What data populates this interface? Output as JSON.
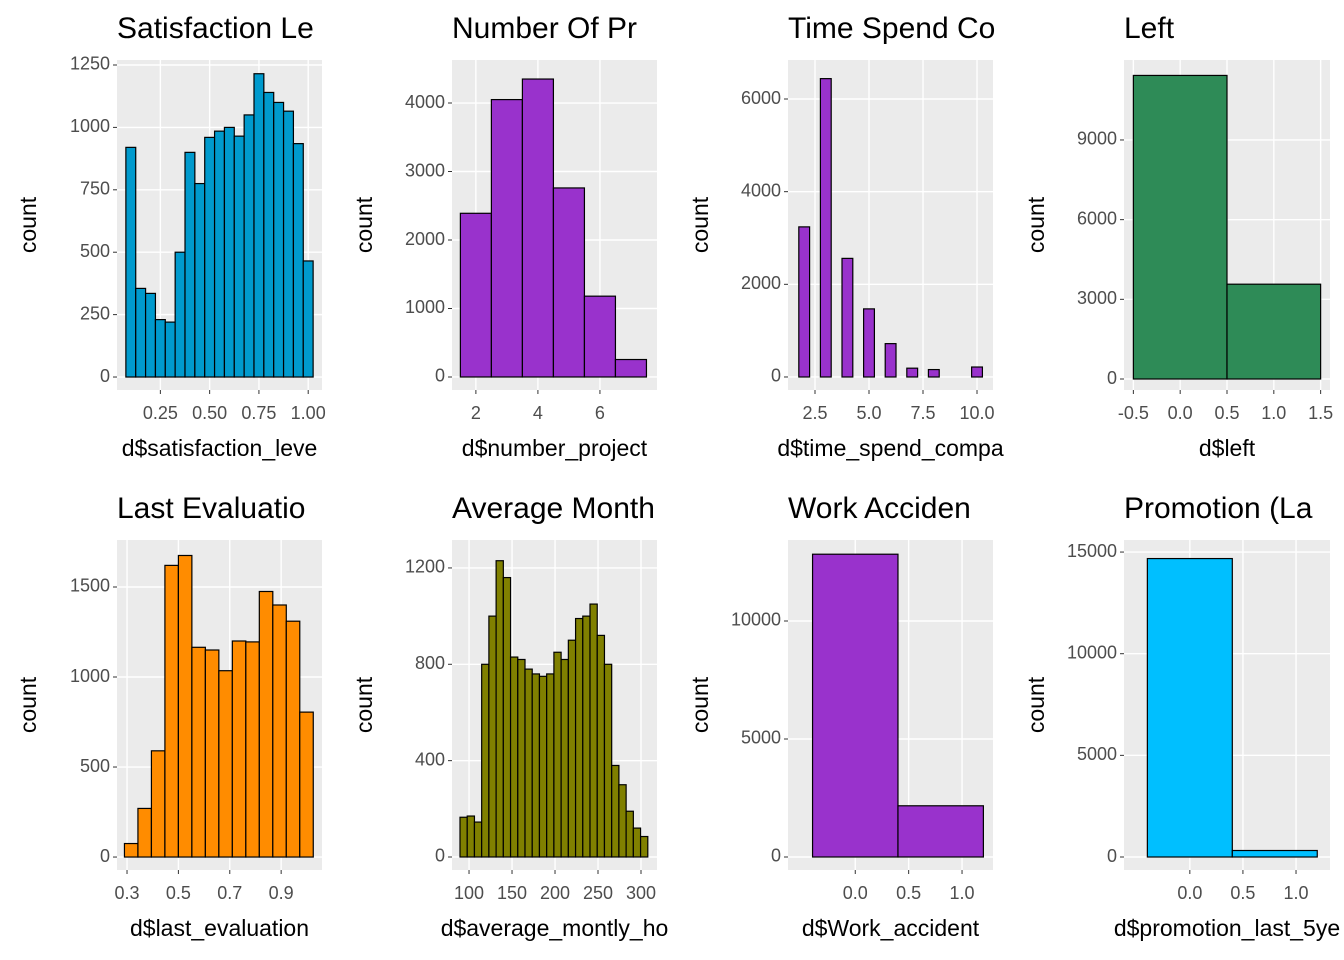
{
  "chart_data": [
    {
      "type": "histogram",
      "title": "Satisfaction Le",
      "x_label": "d$satisfaction_leve",
      "y_label": "count",
      "color": "#009ACD",
      "bins": [
        0.075,
        0.125,
        0.175,
        0.225,
        0.275,
        0.325,
        0.375,
        0.425,
        0.475,
        0.525,
        0.575,
        0.625,
        0.675,
        0.725,
        0.775,
        0.825,
        0.875,
        0.925,
        0.975,
        1.025
      ],
      "values": [
        920,
        355,
        335,
        230,
        220,
        500,
        900,
        775,
        960,
        985,
        1000,
        965,
        1050,
        1215,
        1140,
        1100,
        1065,
        935,
        465
      ],
      "xlim": [
        0.03,
        1.07
      ],
      "ylim": [
        -52,
        1270
      ],
      "xticks": [
        {
          "value": 0.25,
          "label": "0.25"
        },
        {
          "value": 0.5,
          "label": "0.50"
        },
        {
          "value": 0.75,
          "label": "0.75"
        },
        {
          "value": 1.0,
          "label": "1.00"
        }
      ],
      "yticks": [
        0,
        250,
        500,
        750,
        1000,
        1250
      ],
      "grid": true
    },
    {
      "type": "histogram",
      "title": "Number Of Pr",
      "x_label": "d$number_project",
      "y_label": "count",
      "color": "#9932CC",
      "bins": [
        1.5,
        2.5,
        3.5,
        4.5,
        5.5,
        6.5,
        7.5
      ],
      "values": [
        2390,
        4050,
        4350,
        2760,
        1180,
        255
      ],
      "xlim": [
        1.23,
        7.84
      ],
      "ylim": [
        -190,
        4628
      ],
      "xticks": [
        2,
        4,
        6
      ],
      "yticks": [
        0,
        1000,
        2000,
        3000,
        4000
      ],
      "grid": true
    },
    {
      "type": "histogram",
      "title": "Time Spend Co",
      "x_label": "d$time_spend_compa",
      "y_label": "count",
      "color": "#9932CC",
      "bins": [
        1.75,
        2.25,
        2.75,
        3.25,
        3.75,
        4.25,
        4.75,
        5.25,
        5.75,
        6.25,
        6.75,
        7.25,
        7.75,
        8.25,
        8.75,
        9.25,
        9.75,
        10.25
      ],
      "values": [
        3240,
        0,
        6440,
        0,
        2560,
        0,
        1470,
        0,
        720,
        0,
        190,
        0,
        160,
        0,
        0,
        0,
        215
      ],
      "xlim": [
        1.25,
        10.74
      ],
      "ylim": [
        -281,
        6842
      ],
      "xticks": [
        {
          "value": 2.5,
          "label": "2.5"
        },
        {
          "value": 5,
          "label": "5.0"
        },
        {
          "value": 7.5,
          "label": "7.5"
        },
        {
          "value": 10,
          "label": "10.0"
        }
      ],
      "yticks": [
        0,
        2000,
        4000,
        6000
      ],
      "grid": true
    },
    {
      "type": "histogram",
      "title": "Left",
      "x_label": "d$left",
      "y_label": "count",
      "color": "#2E8B57",
      "bins": [
        -0.5,
        0.5,
        1.5
      ],
      "values": [
        11430,
        3570
      ],
      "xlim": [
        -0.6,
        1.6
      ],
      "ylim": [
        -414,
        12011
      ],
      "xticks": [
        {
          "value": -0.5,
          "label": "-0.5"
        },
        {
          "value": 0,
          "label": "0.0"
        },
        {
          "value": 0.5,
          "label": "0.5"
        },
        {
          "value": 1,
          "label": "1.0"
        },
        {
          "value": 1.5,
          "label": "1.5"
        }
      ],
      "yticks": [
        0,
        3000,
        6000,
        9000
      ],
      "grid": true
    },
    {
      "type": "histogram",
      "title": "Last Evaluatio",
      "x_label": "d$last_evaluation",
      "y_label": "count",
      "color": "#FF8C00",
      "bins": [
        0.29,
        0.3425,
        0.395,
        0.4475,
        0.5,
        0.5525,
        0.605,
        0.6575,
        0.71,
        0.7625,
        0.815,
        0.8675,
        0.92,
        0.9725,
        1.025
      ],
      "values": [
        75,
        270,
        590,
        1620,
        1675,
        1165,
        1150,
        1035,
        1200,
        1195,
        1475,
        1400,
        1310,
        805
      ],
      "xlim": [
        0.261,
        1.059
      ],
      "ylim": [
        -72,
        1761
      ],
      "xticks": [
        0.3,
        0.5,
        0.7,
        0.9
      ],
      "yticks": [
        0,
        500,
        1000,
        1500
      ],
      "grid": true
    },
    {
      "type": "histogram",
      "title": "Average Month",
      "x_label": "d$average_montly_ho",
      "y_label": "count",
      "color": "#808000",
      "bins": [
        89.5,
        97.9,
        106.3,
        114.7,
        123.1,
        131.5,
        139.9,
        148.3,
        156.7,
        165.1,
        173.5,
        181.9,
        190.3,
        198.7,
        207.1,
        215.5,
        223.9,
        232.3,
        240.7,
        249.1,
        257.5,
        265.9,
        274.3,
        282.7,
        291.1,
        299.5,
        307.9
      ],
      "values": [
        165,
        170,
        145,
        800,
        1000,
        1230,
        1160,
        830,
        820,
        780,
        760,
        750,
        760,
        850,
        820,
        900,
        990,
        1000,
        1050,
        920,
        800,
        380,
        300,
        190,
        120,
        85
      ],
      "xlim": [
        80.2,
        318.6
      ],
      "ylim": [
        -54,
        1316
      ],
      "xticks": [
        100,
        150,
        200,
        250,
        300
      ],
      "yticks": [
        0,
        400,
        800,
        1200
      ],
      "grid": true
    },
    {
      "type": "histogram",
      "title": "Work Acciden",
      "x_label": "d$Work_accident",
      "y_label": "count",
      "color": "#9932CC",
      "bins": [
        -0.4,
        0.4,
        1.2
      ],
      "values": [
        12830,
        2170
      ],
      "xlim": [
        -0.63,
        1.29
      ],
      "ylim": [
        -551,
        13432
      ],
      "xticks": [
        {
          "value": 0,
          "label": "0.0"
        },
        {
          "value": 0.5,
          "label": "0.5"
        },
        {
          "value": 1,
          "label": "1.0"
        }
      ],
      "yticks": [
        0,
        5000,
        10000
      ],
      "grid": true
    },
    {
      "type": "histogram",
      "title": "Promotion (La",
      "x_label": "d$promotion_last_5ye",
      "y_label": "count",
      "color": "#00BFFF",
      "bins": [
        -0.4,
        0.4,
        1.2
      ],
      "values": [
        14680,
        320
      ],
      "xlim": [
        -0.62,
        1.32
      ],
      "ylim": [
        -639,
        15593
      ],
      "xticks": [
        {
          "value": 0,
          "label": "0.0"
        },
        {
          "value": 0.5,
          "label": "0.5"
        },
        {
          "value": 1,
          "label": "1.0"
        }
      ],
      "yticks": [
        0,
        5000,
        10000,
        15000
      ],
      "grid": true
    }
  ]
}
